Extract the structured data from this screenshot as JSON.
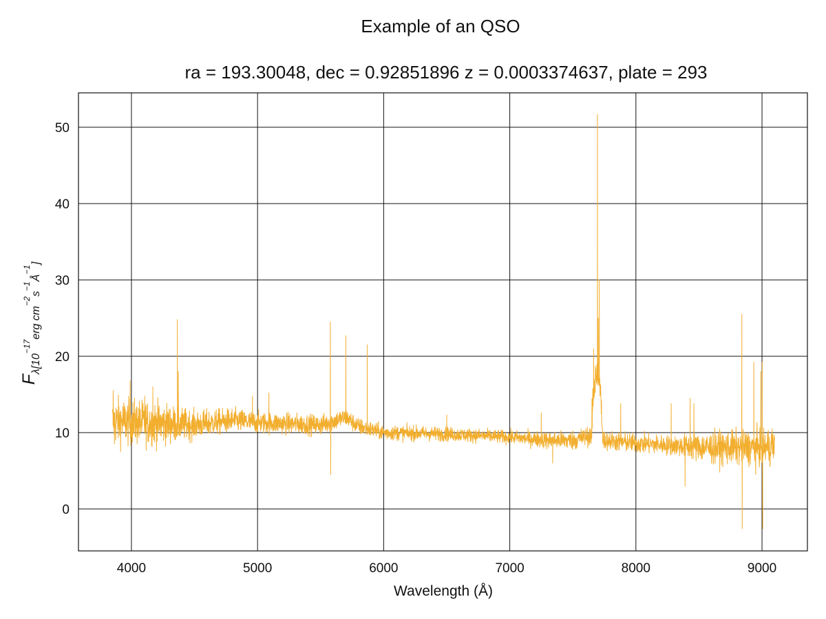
{
  "chart_data": {
    "type": "line",
    "title": "Example of an QSO",
    "subtitle": "ra = 193.30048, dec = 0.92851896 z = 0.0003374637, plate = 293",
    "xlabel": "Wavelength (Å)",
    "ylabel": {
      "base": "F",
      "sub": "λ[10",
      "sup1": "−17",
      "mid": "erg cm",
      "sup2": "−2",
      "mid2": "s",
      "sup3": "−1",
      "mid3": "Å",
      "sup4": "−1",
      "end": "]"
    },
    "xlim": [
      3580,
      9360
    ],
    "ylim": [
      -5.5,
      54.5
    ],
    "xticks": [
      4000,
      5000,
      6000,
      7000,
      8000,
      9000
    ],
    "yticks": [
      0,
      10,
      20,
      30,
      40,
      50
    ],
    "grid": true,
    "line_color": "#F2AE2E",
    "series": [
      {
        "x_start": 3850,
        "x_end": 9100,
        "continuum": [
          [
            3850,
            11.5
          ],
          [
            4200,
            11.2
          ],
          [
            4500,
            11.0
          ],
          [
            4800,
            11.6
          ],
          [
            5000,
            11.3
          ],
          [
            5200,
            11.2
          ],
          [
            5500,
            11.0
          ],
          [
            5700,
            12.0
          ],
          [
            5800,
            10.8
          ],
          [
            6000,
            10.0
          ],
          [
            6500,
            9.8
          ],
          [
            7000,
            9.4
          ],
          [
            7300,
            9.0
          ],
          [
            7500,
            9.0
          ],
          [
            7640,
            9.6
          ],
          [
            7750,
            9.0
          ],
          [
            8000,
            8.6
          ],
          [
            8300,
            8.3
          ],
          [
            8600,
            8.0
          ],
          [
            9100,
            8.1
          ]
        ],
        "noise": [
          [
            3850,
            2.2
          ],
          [
            4200,
            2.0
          ],
          [
            4500,
            1.3
          ],
          [
            5000,
            1.0
          ],
          [
            5600,
            0.9
          ],
          [
            6000,
            0.7
          ],
          [
            7000,
            0.6
          ],
          [
            7500,
            0.9
          ],
          [
            7800,
            0.9
          ],
          [
            8300,
            0.9
          ],
          [
            8600,
            1.5
          ],
          [
            9100,
            1.7
          ]
        ],
        "features": [
          [
            3855,
            15.5
          ],
          [
            3865,
            8.5
          ],
          [
            3990,
            16.8
          ],
          [
            4105,
            14.8
          ],
          [
            4170,
            16.0
          ],
          [
            4364,
            24.8
          ],
          [
            4372,
            18.0
          ],
          [
            4960,
            14.8
          ],
          [
            5090,
            15.2
          ],
          [
            5577,
            24.5
          ],
          [
            5580,
            4.5
          ],
          [
            5700,
            22.7
          ],
          [
            5870,
            21.5
          ],
          [
            6500,
            12.3
          ],
          [
            7250,
            12.6
          ],
          [
            7340,
            6.0
          ],
          [
            7665,
            21.0
          ],
          [
            7683,
            17.0
          ],
          [
            7695,
            51.7
          ],
          [
            7702,
            25.0
          ],
          [
            7710,
            30.0
          ],
          [
            7720,
            16.0
          ],
          [
            7880,
            13.8
          ],
          [
            8280,
            13.8
          ],
          [
            8390,
            3.0
          ],
          [
            8430,
            14.5
          ],
          [
            8460,
            13.8
          ],
          [
            8840,
            25.5
          ],
          [
            8843,
            -2.6
          ],
          [
            8935,
            19.2
          ],
          [
            8950,
            4.5
          ],
          [
            8990,
            18.0
          ],
          [
            9002,
            19.2
          ],
          [
            9005,
            -2.6
          ],
          [
            9080,
            10.5
          ]
        ],
        "emission_bump": [
          7650,
          7735,
          8
        ]
      }
    ]
  }
}
